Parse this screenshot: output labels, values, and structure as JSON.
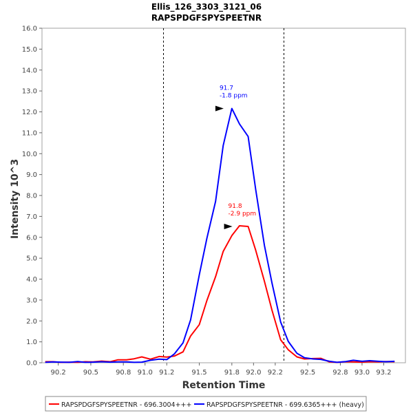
{
  "chart_data": {
    "type": "line",
    "title": "Ellis_126_3303_3121_06",
    "subtitle": "RAPSPDGFSPYSPEETNR",
    "xlabel": "Retention Time",
    "ylabel": "Intensity 10^3",
    "xlim": [
      90.05,
      93.4
    ],
    "ylim": [
      0.0,
      16.0
    ],
    "x_ticks": [
      "90.2",
      "90.5",
      "90.8",
      "91.0",
      "91.2",
      "91.5",
      "91.8",
      "92.0",
      "92.2",
      "92.5",
      "92.8",
      "93.0",
      "93.2"
    ],
    "x_tick_values": [
      90.2,
      90.5,
      90.8,
      91.0,
      91.2,
      91.5,
      91.8,
      92.0,
      92.2,
      92.5,
      92.8,
      93.0,
      93.2
    ],
    "y_ticks": [
      "0.0",
      "1.0",
      "2.0",
      "3.0",
      "4.0",
      "5.0",
      "6.0",
      "7.0",
      "8.0",
      "9.0",
      "10.0",
      "11.0",
      "12.0",
      "13.0",
      "14.0",
      "15.0",
      "16.0"
    ],
    "y_tick_values": [
      0,
      1,
      2,
      3,
      4,
      5,
      6,
      7,
      8,
      9,
      10,
      11,
      12,
      13,
      14,
      15,
      16
    ],
    "vlines": [
      91.17,
      92.28
    ],
    "grid": false,
    "legend_position": "bottom",
    "series": [
      {
        "name": "RAPSPDGFSPYSPEETNR - 696.3004+++",
        "color": "#ff0000",
        "x": [
          90.08,
          90.15,
          90.22,
          90.3,
          90.38,
          90.45,
          90.52,
          90.6,
          90.68,
          90.75,
          90.83,
          90.9,
          90.97,
          91.05,
          91.13,
          91.2,
          91.27,
          91.35,
          91.42,
          91.5,
          91.57,
          91.65,
          91.72,
          91.8,
          91.87,
          91.95,
          92.02,
          92.1,
          92.17,
          92.25,
          92.32,
          92.4,
          92.47,
          92.55,
          92.62,
          92.7,
          92.77,
          92.85,
          92.92,
          93.0,
          93.07,
          93.15,
          93.22,
          93.3
        ],
        "y": [
          0.05,
          0.05,
          0.02,
          0.03,
          0.02,
          0.05,
          0.04,
          0.08,
          0.05,
          0.14,
          0.14,
          0.19,
          0.28,
          0.17,
          0.3,
          0.27,
          0.32,
          0.52,
          1.28,
          1.82,
          2.98,
          4.12,
          5.32,
          6.08,
          6.55,
          6.52,
          5.38,
          3.9,
          2.52,
          1.1,
          0.62,
          0.28,
          0.18,
          0.2,
          0.21,
          0.04,
          0.02,
          0.05,
          0.04,
          0.03,
          0.05,
          0.04,
          0.06,
          0.05
        ],
        "peak_label": [
          "91.8",
          "-2.9 ppm"
        ],
        "peak_x": 91.83,
        "peak_y": 6.52
      },
      {
        "name": "RAPSPDGFSPYSPEETNR - 699.6365+++ (heavy)",
        "color": "#0000ff",
        "x": [
          90.08,
          90.15,
          90.22,
          90.3,
          90.38,
          90.45,
          90.52,
          90.6,
          90.68,
          90.75,
          90.83,
          90.9,
          90.97,
          91.05,
          91.13,
          91.2,
          91.27,
          91.35,
          91.42,
          91.5,
          91.57,
          91.65,
          91.72,
          91.8,
          91.87,
          91.95,
          92.02,
          92.1,
          92.17,
          92.25,
          92.32,
          92.4,
          92.47,
          92.55,
          92.62,
          92.7,
          92.77,
          92.85,
          92.92,
          93.0,
          93.07,
          93.15,
          93.22,
          93.3
        ],
        "y": [
          0.02,
          0.04,
          0.03,
          0.02,
          0.06,
          0.02,
          0.03,
          0.05,
          0.03,
          0.04,
          0.04,
          0.02,
          0.03,
          0.12,
          0.17,
          0.15,
          0.42,
          0.95,
          2.05,
          4.2,
          5.96,
          7.72,
          10.38,
          12.16,
          11.42,
          10.82,
          8.28,
          5.62,
          3.82,
          1.95,
          1.02,
          0.45,
          0.24,
          0.18,
          0.16,
          0.07,
          0.02,
          0.06,
          0.12,
          0.07,
          0.1,
          0.07,
          0.05,
          0.07
        ],
        "peak_label": [
          "91.7",
          "-1.8 ppm"
        ],
        "peak_x": 91.75,
        "peak_y": 12.16
      }
    ]
  }
}
